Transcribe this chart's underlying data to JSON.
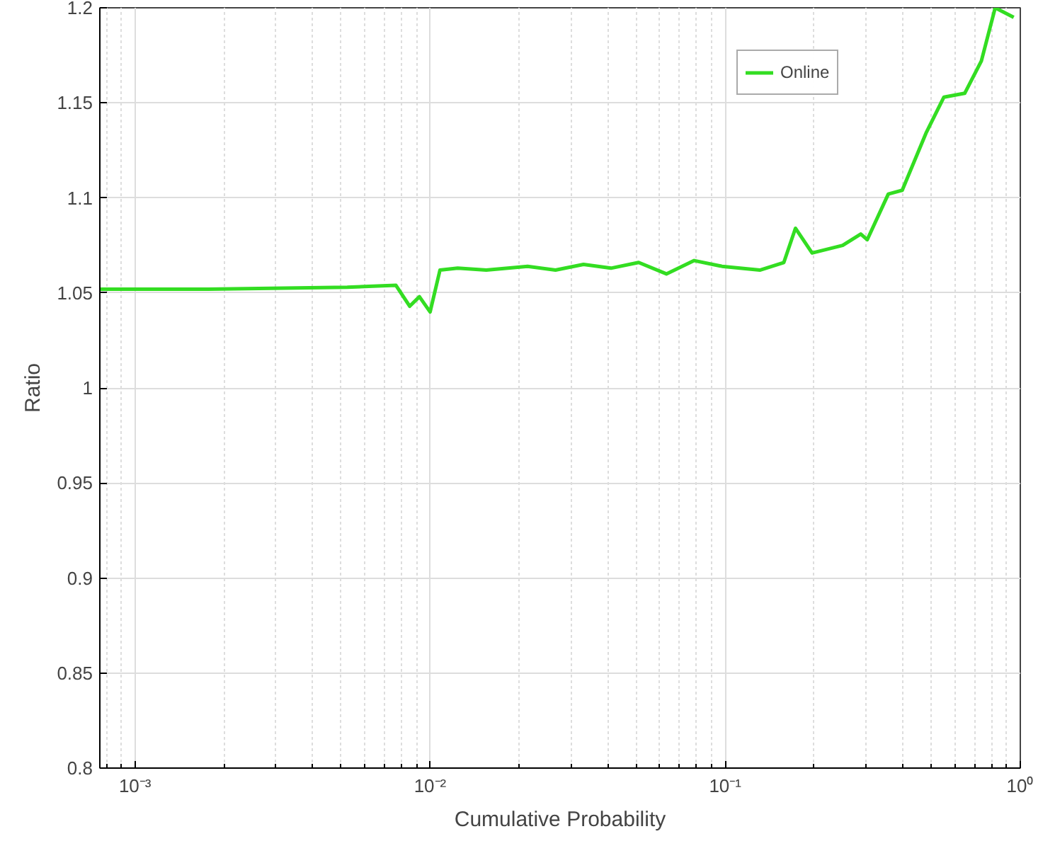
{
  "chart_data": {
    "type": "line",
    "xlabel": "Cumulative Probability",
    "ylabel": "Ratio",
    "log": "x",
    "grid": true,
    "legend": "top right",
    "line_style": "solid",
    "marker": "none",
    "xlim": [
      0.00076,
      1
    ],
    "ylim": [
      0.8,
      1.2
    ],
    "xticks": [
      {
        "value": 0.001,
        "label": "10⁻³"
      },
      {
        "value": 0.01,
        "label": "10⁻²"
      },
      {
        "value": 0.1,
        "label": "10⁻¹"
      },
      {
        "value": 1,
        "label": "10⁰"
      }
    ],
    "yticks": [
      0.8,
      0.85,
      0.9,
      0.95,
      1,
      1.05,
      1.1,
      1.15,
      1.2
    ],
    "series": [
      {
        "name": "Online",
        "color": "#33dd22",
        "x": [
          0.00076,
          0.00177,
          0.00524,
          0.00766,
          0.00853,
          0.0092,
          0.01,
          0.0108,
          0.0124,
          0.0155,
          0.0214,
          0.0266,
          0.0331,
          0.041,
          0.0509,
          0.0632,
          0.0785,
          0.0975,
          0.131,
          0.158,
          0.173,
          0.197,
          0.25,
          0.288,
          0.303,
          0.357,
          0.398,
          0.479,
          0.551,
          0.648,
          0.738,
          0.822,
          0.95
        ],
        "values": [
          1.052,
          1.052,
          1.053,
          1.054,
          1.043,
          1.048,
          1.04,
          1.062,
          1.063,
          1.062,
          1.064,
          1.062,
          1.065,
          1.063,
          1.066,
          1.06,
          1.067,
          1.064,
          1.062,
          1.066,
          1.084,
          1.071,
          1.075,
          1.081,
          1.078,
          1.102,
          1.104,
          1.134,
          1.153,
          1.155,
          1.172,
          1.2,
          1.195
        ]
      }
    ]
  }
}
